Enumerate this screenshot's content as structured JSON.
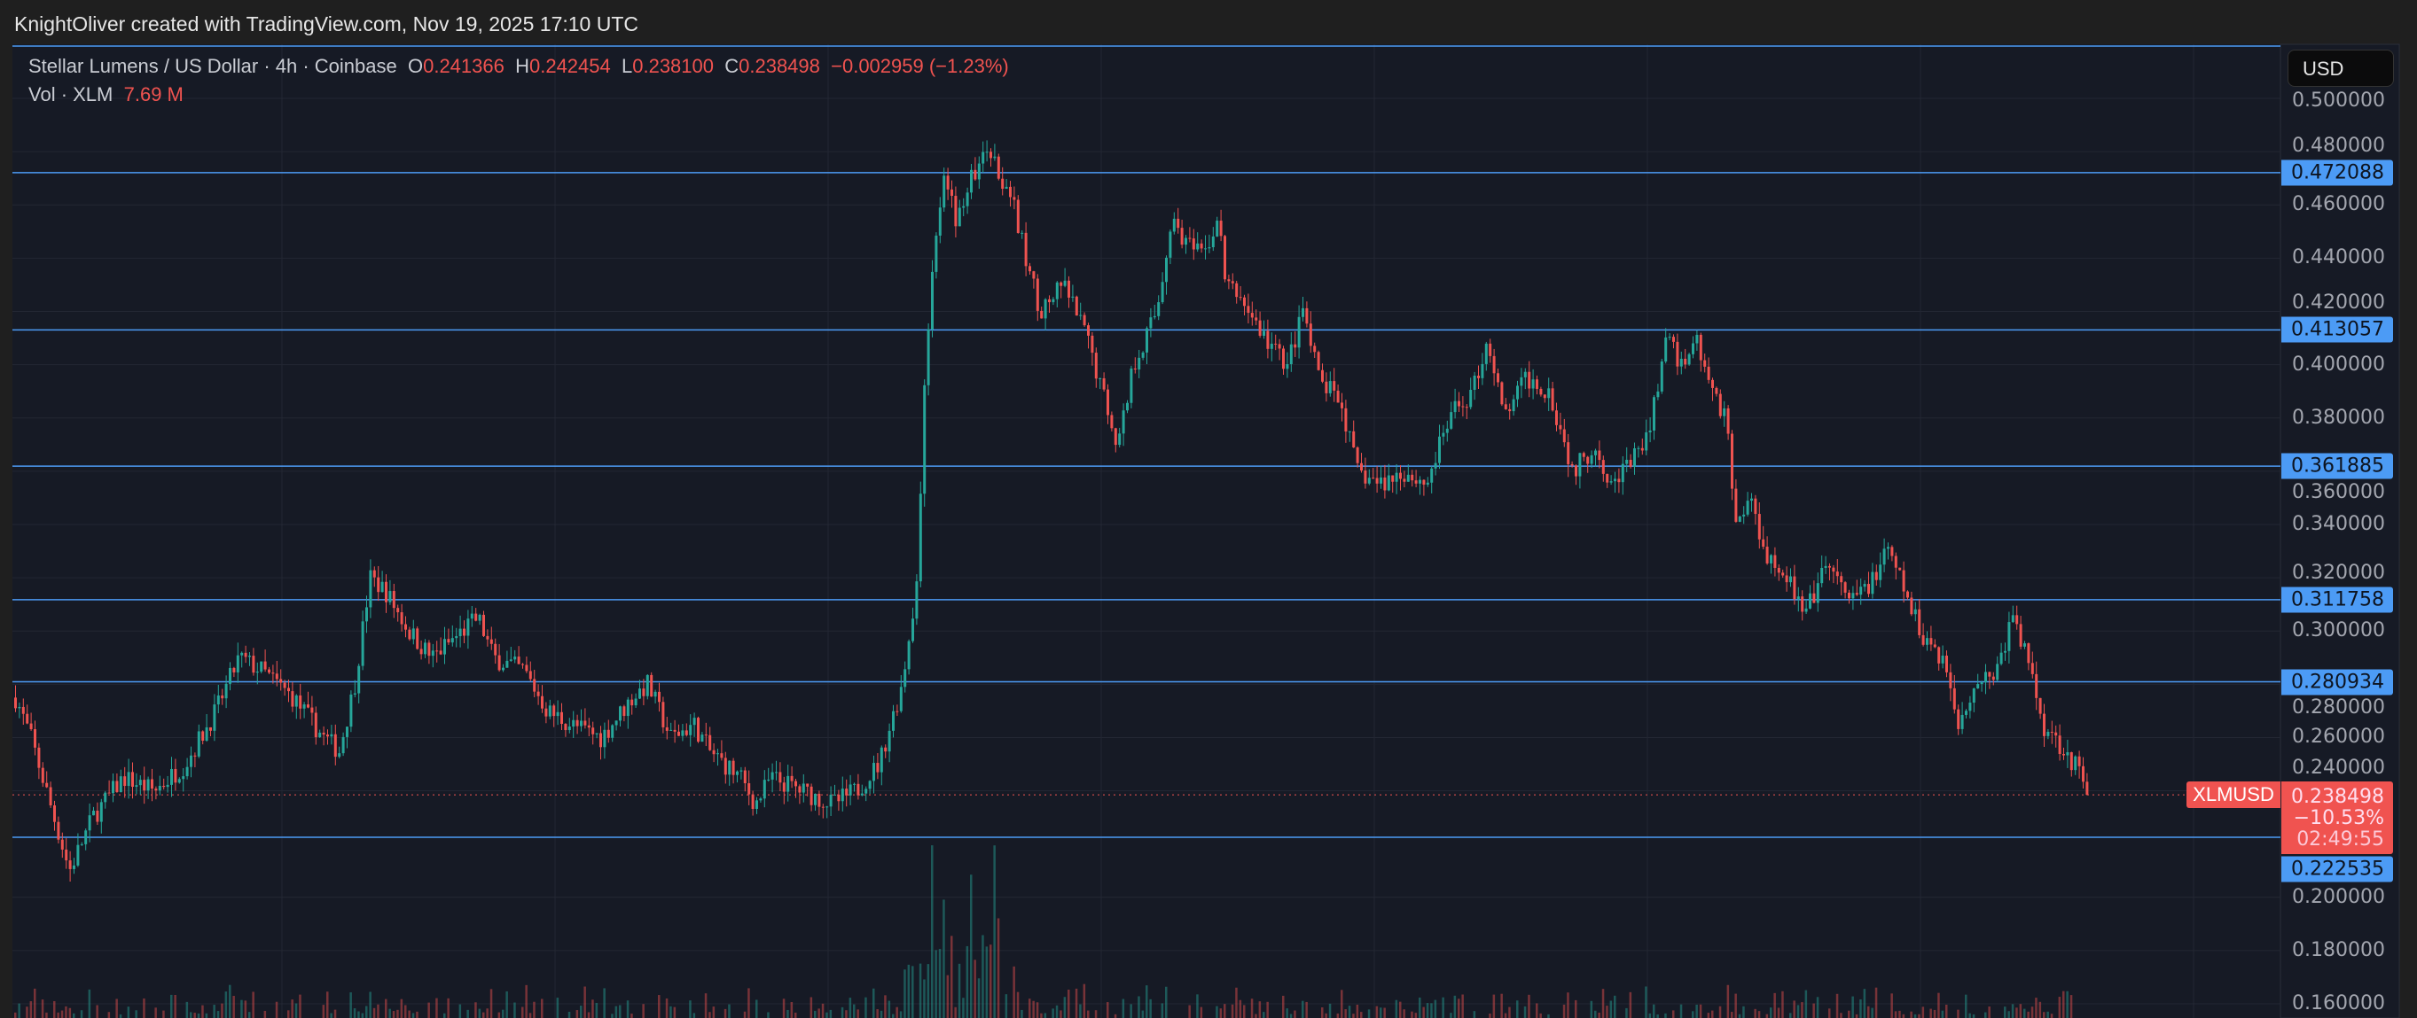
{
  "header": {
    "attribution": "KnightOliver created with TradingView.com, Nov 19, 2025 17:10 UTC"
  },
  "legend": {
    "title": "Stellar Lumens / US Dollar · 4h · Coinbase",
    "o_label": "O",
    "open": "0.241366",
    "h_label": "H",
    "high": "0.242454",
    "l_label": "L",
    "low": "0.238100",
    "c_label": "C",
    "close": "0.238498",
    "change": "−0.002959 (−1.23%)",
    "vol_label": "Vol · XLM",
    "volume": "7.69 M"
  },
  "axis": {
    "currency": "USD"
  },
  "current": {
    "symbol": "XLMUSD",
    "price": "0.238498",
    "change_pct": "−10.53%",
    "countdown": "02:49:55"
  },
  "colors": {
    "up": "#26a69a",
    "down": "#ef5350",
    "level": "#4c9bf5",
    "bg": "#161a25",
    "grid": "#232733"
  },
  "chart_data": {
    "type": "candlestick",
    "title": "Stellar Lumens / US Dollar · 4h · Coinbase",
    "ylim": [
      0.155,
      0.52
    ],
    "y_ticks": [
      "0.500000",
      "0.480000",
      "0.460000",
      "0.440000",
      "0.420000",
      "0.400000",
      "0.380000",
      "0.360000",
      "0.340000",
      "0.320000",
      "0.300000",
      "0.280000",
      "0.260000",
      "0.240000",
      "0.200000",
      "0.180000",
      "0.160000"
    ],
    "horizontal_levels": [
      "0.472088",
      "0.413057",
      "0.361885",
      "0.311758",
      "0.280934",
      "0.222535"
    ],
    "approx_close_path": [
      [
        0,
        0.275
      ],
      [
        10,
        0.26
      ],
      [
        35,
        0.21
      ],
      [
        50,
        0.23
      ],
      [
        70,
        0.245
      ],
      [
        90,
        0.24
      ],
      [
        110,
        0.25
      ],
      [
        130,
        0.27
      ],
      [
        145,
        0.29
      ],
      [
        160,
        0.285
      ],
      [
        180,
        0.275
      ],
      [
        200,
        0.26
      ],
      [
        210,
        0.255
      ],
      [
        220,
        0.28
      ],
      [
        230,
        0.32
      ],
      [
        240,
        0.315
      ],
      [
        255,
        0.3
      ],
      [
        270,
        0.29
      ],
      [
        290,
        0.3
      ],
      [
        300,
        0.305
      ],
      [
        310,
        0.29
      ],
      [
        330,
        0.285
      ],
      [
        345,
        0.27
      ],
      [
        360,
        0.265
      ],
      [
        380,
        0.26
      ],
      [
        400,
        0.275
      ],
      [
        410,
        0.28
      ],
      [
        425,
        0.26
      ],
      [
        440,
        0.265
      ],
      [
        450,
        0.255
      ],
      [
        470,
        0.245
      ],
      [
        480,
        0.235
      ],
      [
        490,
        0.245
      ],
      [
        510,
        0.24
      ],
      [
        530,
        0.235
      ],
      [
        545,
        0.24
      ],
      [
        560,
        0.25
      ],
      [
        575,
        0.28
      ],
      [
        585,
        0.32
      ],
      [
        590,
        0.4
      ],
      [
        595,
        0.44
      ],
      [
        602,
        0.47
      ],
      [
        610,
        0.455
      ],
      [
        620,
        0.47
      ],
      [
        630,
        0.48
      ],
      [
        645,
        0.465
      ],
      [
        655,
        0.44
      ],
      [
        665,
        0.42
      ],
      [
        680,
        0.43
      ],
      [
        695,
        0.41
      ],
      [
        705,
        0.39
      ],
      [
        715,
        0.37
      ],
      [
        725,
        0.4
      ],
      [
        740,
        0.42
      ],
      [
        750,
        0.455
      ],
      [
        760,
        0.445
      ],
      [
        770,
        0.44
      ],
      [
        780,
        0.455
      ],
      [
        785,
        0.43
      ],
      [
        795,
        0.425
      ],
      [
        810,
        0.41
      ],
      [
        825,
        0.4
      ],
      [
        835,
        0.42
      ],
      [
        845,
        0.395
      ],
      [
        860,
        0.385
      ],
      [
        870,
        0.36
      ],
      [
        885,
        0.355
      ],
      [
        900,
        0.36
      ],
      [
        915,
        0.355
      ],
      [
        930,
        0.38
      ],
      [
        945,
        0.39
      ],
      [
        955,
        0.41
      ],
      [
        965,
        0.38
      ],
      [
        980,
        0.395
      ],
      [
        995,
        0.39
      ],
      [
        1010,
        0.36
      ],
      [
        1025,
        0.37
      ],
      [
        1035,
        0.355
      ],
      [
        1050,
        0.365
      ],
      [
        1060,
        0.375
      ],
      [
        1070,
        0.41
      ],
      [
        1080,
        0.4
      ],
      [
        1090,
        0.41
      ],
      [
        1100,
        0.39
      ],
      [
        1110,
        0.38
      ],
      [
        1115,
        0.34
      ],
      [
        1125,
        0.35
      ],
      [
        1135,
        0.33
      ],
      [
        1150,
        0.32
      ],
      [
        1160,
        0.305
      ],
      [
        1175,
        0.325
      ],
      [
        1190,
        0.31
      ],
      [
        1205,
        0.32
      ],
      [
        1215,
        0.33
      ],
      [
        1225,
        0.315
      ],
      [
        1235,
        0.3
      ],
      [
        1250,
        0.29
      ],
      [
        1260,
        0.265
      ],
      [
        1270,
        0.28
      ],
      [
        1285,
        0.285
      ],
      [
        1295,
        0.305
      ],
      [
        1305,
        0.29
      ],
      [
        1315,
        0.265
      ],
      [
        1330,
        0.255
      ],
      [
        1340,
        0.245
      ],
      [
        1345,
        0.238498
      ]
    ]
  }
}
